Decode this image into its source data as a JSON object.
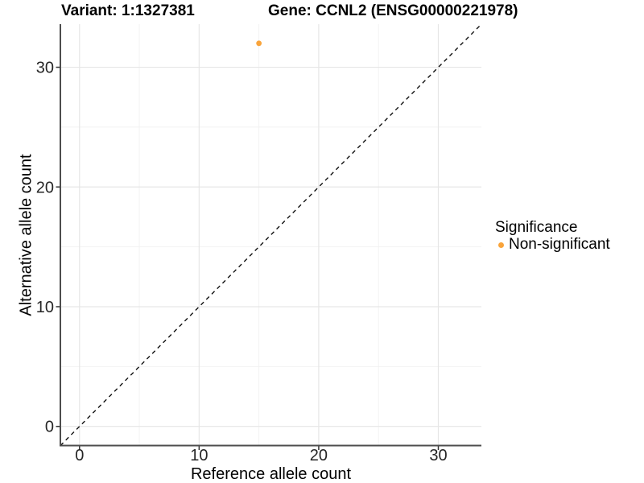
{
  "header": {
    "variant_title": "Variant: 1:1327381",
    "gene_title": "Gene: CCNL2 (ENSG00000221978)"
  },
  "chart_data": {
    "type": "scatter",
    "title_left": "Variant: 1:1327381",
    "title_right": "Gene: CCNL2 (ENSG00000221978)",
    "xlabel": "Reference allele count",
    "ylabel": "Alternative allele count",
    "xlim": [
      -1.6,
      33.6
    ],
    "ylim": [
      -1.6,
      33.6
    ],
    "x_major_ticks": [
      0,
      10,
      20,
      30
    ],
    "y_major_ticks": [
      0,
      10,
      20,
      30
    ],
    "x_minor_gridlines": [
      5,
      15,
      25
    ],
    "y_minor_gridlines": [
      5,
      15,
      25
    ],
    "grid": "major-and-minor",
    "points": [
      {
        "x": 15,
        "y": 32,
        "series": "Non-significant",
        "color": "#F9A43B"
      }
    ],
    "reference_line": {
      "slope": 1,
      "intercept": 0,
      "style": "dashed",
      "color": "#111111",
      "description": "identity line y = x"
    },
    "legend_position": "right"
  },
  "legend": {
    "title": "Significance",
    "items": [
      {
        "label": "Non-significant",
        "color": "#F9A43B"
      }
    ]
  },
  "style": {
    "point_color": "#F9A43B",
    "axis_line_color": "#4d4d4d",
    "tick_mark_color": "#333333",
    "tick_label_color": "#262626",
    "grid_major_color": "#e6e6e6",
    "grid_minor_color": "#f2f2f2",
    "background_color": "#ffffff"
  }
}
